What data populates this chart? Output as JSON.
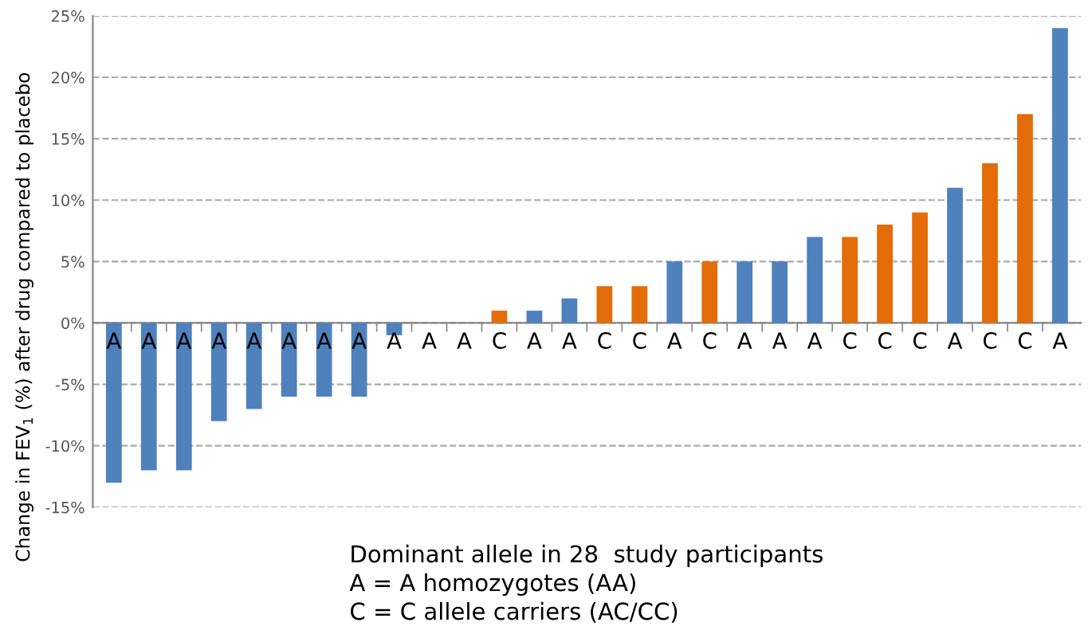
{
  "chart_data": {
    "type": "bar",
    "categories": [
      "A",
      "A",
      "A",
      "A",
      "A",
      "A",
      "A",
      "A",
      "A",
      "A",
      "A",
      "C",
      "A",
      "A",
      "C",
      "C",
      "A",
      "C",
      "A",
      "A",
      "A",
      "C",
      "C",
      "C",
      "A",
      "C",
      "C",
      "A"
    ],
    "values": [
      -13,
      -12,
      -12,
      -8,
      -7,
      -6,
      -6,
      -6,
      -1,
      0,
      0,
      1,
      1,
      2,
      3,
      3,
      5,
      5,
      5,
      5,
      7,
      7,
      8,
      9,
      11,
      13,
      17,
      24
    ],
    "colors": [
      "#4f81bd",
      "#4f81bd",
      "#4f81bd",
      "#4f81bd",
      "#4f81bd",
      "#4f81bd",
      "#4f81bd",
      "#4f81bd",
      "#4f81bd",
      "#4f81bd",
      "#4f81bd",
      "#e36c09",
      "#4f81bd",
      "#4f81bd",
      "#e36c09",
      "#e36c09",
      "#4f81bd",
      "#e36c09",
      "#4f81bd",
      "#4f81bd",
      "#4f81bd",
      "#e36c09",
      "#e36c09",
      "#e36c09",
      "#4f81bd",
      "#e36c09",
      "#e36c09",
      "#4f81bd"
    ],
    "ylabel": "Change in FEV$_{1}$ (%) after drug compared to placebo",
    "xlabel": "Dominant allele in 28  study participants\nA = A homozygotes (AA)\nC = C allele carriers (AC/CC)",
    "ylim": [
      -15,
      25
    ],
    "yticks": [
      {
        "value": -15,
        "label": "-15%"
      },
      {
        "value": -10,
        "label": "-10%"
      },
      {
        "value": -5,
        "label": "-5%"
      },
      {
        "value": 0,
        "label": "0%"
      },
      {
        "value": 5,
        "label": "5%"
      },
      {
        "value": 10,
        "label": "10%"
      },
      {
        "value": 15,
        "label": "15%"
      },
      {
        "value": 20,
        "label": "20%"
      },
      {
        "value": 25,
        "label": "25%"
      }
    ],
    "grid": "y"
  }
}
